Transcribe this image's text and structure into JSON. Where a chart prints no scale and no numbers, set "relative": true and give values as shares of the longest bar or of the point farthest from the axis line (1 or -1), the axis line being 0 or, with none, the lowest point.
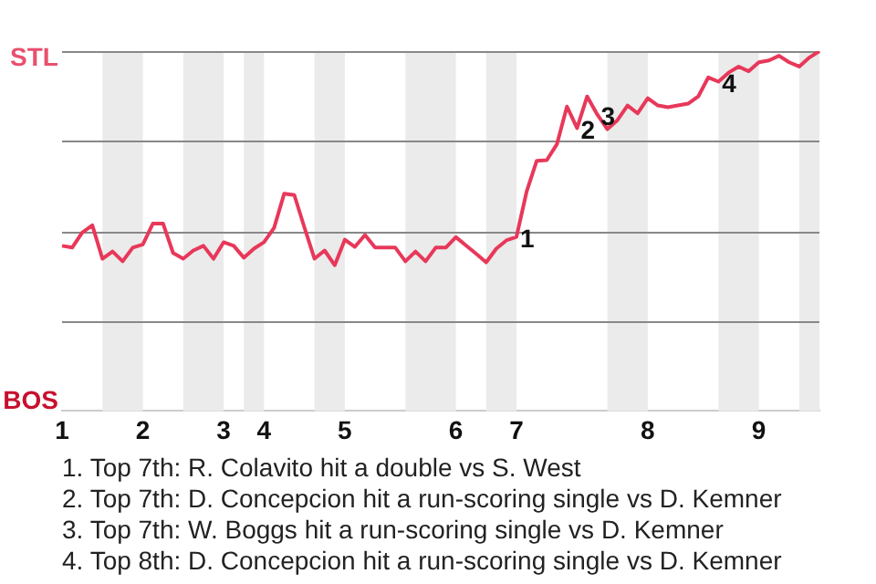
{
  "chart_data": {
    "type": "line",
    "relative": true,
    "categories": [
      "1",
      null,
      null,
      null,
      null,
      null,
      null,
      null,
      "2",
      null,
      null,
      null,
      null,
      null,
      null,
      null,
      "3",
      null,
      null,
      null,
      "4",
      null,
      null,
      null,
      null,
      null,
      null,
      null,
      "5",
      null,
      null,
      null,
      null,
      null,
      null,
      null,
      null,
      null,
      null,
      "6",
      null,
      null,
      null,
      null,
      null,
      "7",
      null,
      null,
      null,
      null,
      null,
      null,
      null,
      null,
      null,
      null,
      null,
      null,
      "8",
      null,
      null,
      null,
      null,
      null,
      null,
      null,
      null,
      null,
      null,
      "9",
      null,
      null,
      null,
      null,
      null,
      null
    ],
    "grid": "y",
    "legend": false,
    "marker": "none",
    "line_style": "solid",
    "series": [
      {
        "color": "#e8385a",
        "values": [
          0.459,
          0.454,
          0.496,
          0.516,
          0.423,
          0.443,
          0.416,
          0.454,
          0.463,
          0.521,
          0.521,
          0.439,
          0.423,
          0.446,
          0.459,
          0.423,
          0.469,
          0.459,
          0.426,
          0.451,
          0.469,
          0.509,
          0.604,
          0.6,
          0.51,
          0.423,
          0.446,
          0.405,
          0.476,
          0.456,
          0.489,
          0.454,
          0.454,
          0.454,
          0.416,
          0.443,
          0.416,
          0.454,
          0.454,
          0.483,
          0.46,
          0.437,
          0.413,
          0.451,
          0.474,
          0.484,
          0.609,
          0.695,
          0.697,
          0.741,
          0.846,
          0.786,
          0.874,
          0.824,
          0.783,
          0.808,
          0.849,
          0.827,
          0.869,
          0.849,
          0.844,
          0.849,
          0.854,
          0.874,
          0.927,
          0.915,
          0.94,
          0.957,
          0.944,
          0.969,
          0.974,
          0.987,
          0.969,
          0.957,
          0.982,
          1
        ]
      }
    ],
    "annotations": [
      "STL",
      "BOS",
      {
        "text": "1",
        "x": "7",
        "y": 0.484
      },
      {
        "text": "2",
        "y": 0.786
      },
      {
        "text": "3",
        "y": 0.824
      },
      {
        "text": "4",
        "y": 0.915
      },
      "1. Top 7th: R. Colavito hit a double vs S. West",
      "2. Top 7th: D. Concepcion hit a run-scoring single vs D. Kemner",
      "3. Top 7th: W. Boggs hit a run-scoring single vs D. Kemner",
      "4. Top 8th: D. Concepcion hit a run-scoring single vs D. Kemner"
    ]
  }
}
